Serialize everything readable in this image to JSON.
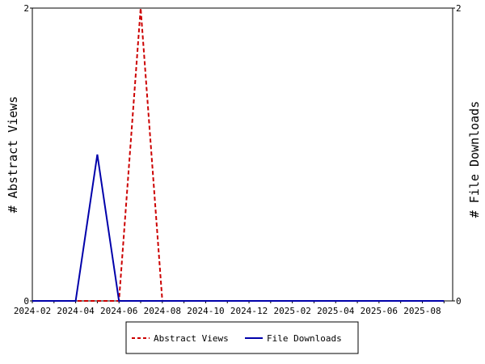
{
  "chart_data": {
    "type": "line",
    "x": [
      "2024-02",
      "2024-03",
      "2024-04",
      "2024-05",
      "2024-06",
      "2024-07",
      "2024-08",
      "2024-09",
      "2024-10",
      "2024-11",
      "2024-12",
      "2025-01",
      "2025-02",
      "2025-03",
      "2025-04",
      "2025-05",
      "2025-06",
      "2025-07",
      "2025-08",
      "2025-09"
    ],
    "x_tick_labels": [
      "2024-02",
      "2024-04",
      "2024-06",
      "2024-08",
      "2024-10",
      "2024-12",
      "2025-02",
      "2025-04",
      "2025-06",
      "2025-08"
    ],
    "series": [
      {
        "name": "Abstract Views",
        "axis": "left",
        "color": "#cc0000",
        "dash": true,
        "values": [
          0,
          0,
          0,
          0,
          0,
          2,
          0,
          0,
          0,
          0,
          0,
          0,
          0,
          0,
          0,
          0,
          0,
          0,
          0,
          0
        ]
      },
      {
        "name": "File Downloads",
        "axis": "right",
        "color": "#0000aa",
        "dash": false,
        "values": [
          0,
          0,
          0,
          1,
          0,
          0,
          0,
          0,
          0,
          0,
          0,
          0,
          0,
          0,
          0,
          0,
          0,
          0,
          0,
          0
        ]
      }
    ],
    "ylabel": "# Abstract Views",
    "y2label": "# File Downloads",
    "ylim": [
      0,
      2
    ],
    "y2lim": [
      0,
      2
    ],
    "y_ticks": [
      "0",
      "2"
    ],
    "y2_ticks": [
      "0",
      "2"
    ],
    "grid": false,
    "legend": "bottom-center"
  }
}
